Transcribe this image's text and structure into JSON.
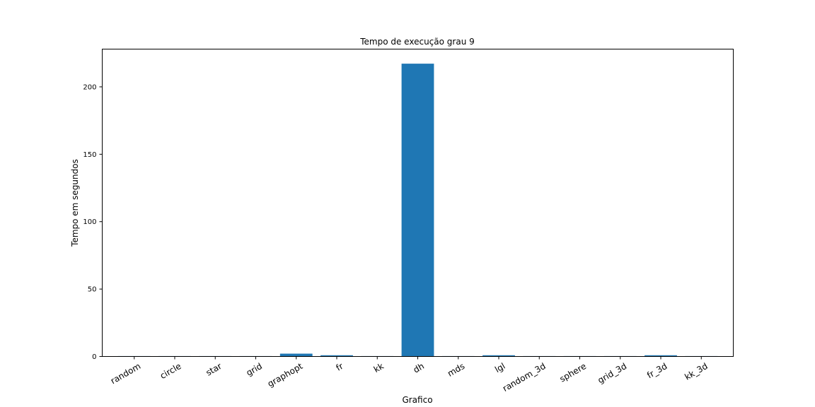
{
  "chart_data": {
    "type": "bar",
    "title": "Tempo de execução grau 9",
    "xlabel": "Grafico",
    "ylabel": "Tempo em segundos",
    "categories": [
      "random",
      "circle",
      "star",
      "grid",
      "graphopt",
      "fr",
      "kk",
      "dh",
      "mds",
      "lgl",
      "random_3d",
      "sphere",
      "grid_3d",
      "fr_3d",
      "kk_3d"
    ],
    "values": [
      0.3,
      0.3,
      0.3,
      0.3,
      2.1,
      0.9,
      0.3,
      217.2,
      0.3,
      0.9,
      0.3,
      0.3,
      0.3,
      0.9,
      0.3
    ],
    "ylim": [
      0,
      228
    ],
    "yticks": [
      0,
      50,
      100,
      150,
      200
    ],
    "bar_color": "#1f77b4",
    "grid": false,
    "legend": "none"
  }
}
